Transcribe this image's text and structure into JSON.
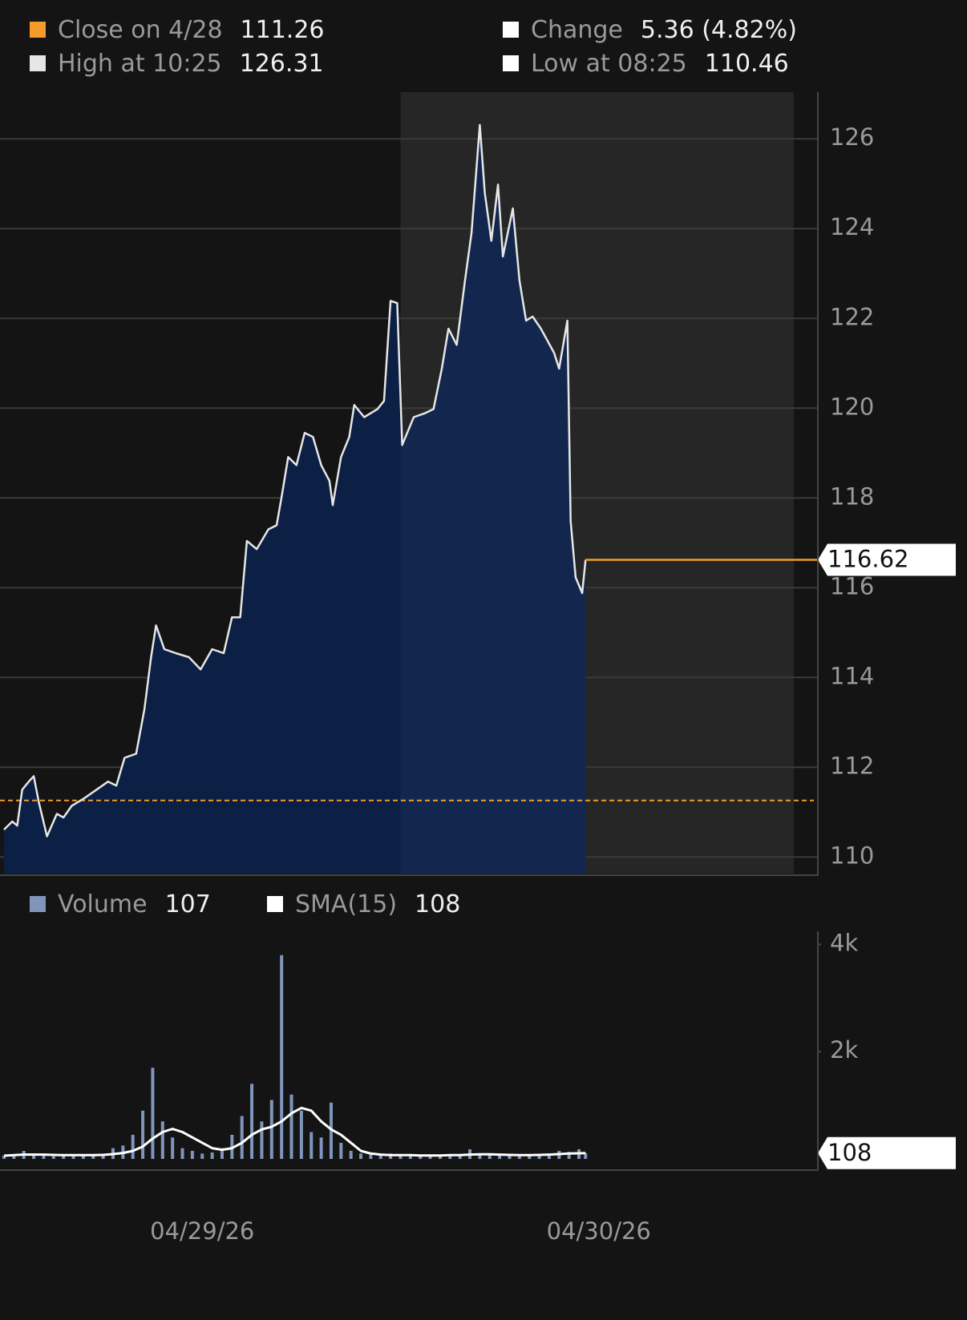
{
  "header": {
    "items": [
      {
        "label": "Close on 4/28",
        "value": 111.26,
        "color": "#f39c2b"
      },
      {
        "label": "Change",
        "value": "5.36 (4.82%)",
        "color": "#ffffff"
      },
      {
        "label": "High at 10:25",
        "value": 126.31,
        "color": "#e6e6e6"
      },
      {
        "label": "Low at 08:25",
        "value": 110.46,
        "color": "#ffffff"
      }
    ]
  },
  "chart_data": [
    {
      "type": "area",
      "color": "#e6e6e6",
      "fill_color": "#0c1f44",
      "reference_color": "#f39c2b",
      "x": [
        0,
        0.5,
        0.8,
        1.1,
        1.5,
        1.8,
        2.1,
        2.6,
        3.2,
        3.6,
        4.1,
        4.9,
        5.6,
        6.3,
        6.8,
        7.3,
        8.0,
        8.5,
        8.9,
        9.2,
        9.7,
        10.4,
        11.2,
        11.9,
        12.6,
        13.3,
        13.8,
        14.3,
        14.7,
        15.3,
        16.0,
        16.5,
        16.8,
        17.2,
        17.7,
        18.2,
        18.7,
        19.2,
        19.7,
        19.9,
        20.4,
        20.9,
        21.2,
        21.8,
        22.6,
        23.0,
        23.4,
        23.8,
        24.1,
        24.8,
        25.5,
        26.0,
        26.5,
        26.9,
        27.4,
        27.9,
        28.3,
        28.8,
        29.1,
        29.5,
        29.9,
        30.2,
        30.8,
        31.2,
        31.6,
        32.0,
        32.5,
        33.3,
        33.6,
        34.1,
        34.3,
        34.6,
        35.0,
        35.2
      ],
      "values": [
        110.61,
        110.79,
        110.7,
        111.5,
        111.68,
        111.8,
        111.23,
        110.46,
        110.96,
        110.88,
        111.14,
        111.32,
        111.5,
        111.68,
        111.59,
        112.21,
        112.3,
        113.29,
        114.45,
        115.16,
        114.63,
        114.54,
        114.45,
        114.18,
        114.63,
        114.54,
        115.34,
        115.34,
        117.04,
        116.86,
        117.3,
        117.39,
        118.02,
        118.91,
        118.73,
        119.45,
        119.36,
        118.73,
        118.38,
        117.84,
        118.91,
        119.36,
        120.07,
        119.8,
        119.98,
        120.16,
        122.39,
        122.34,
        119.18,
        119.8,
        119.89,
        119.98,
        120.88,
        121.77,
        121.41,
        122.84,
        123.91,
        126.31,
        124.8,
        123.73,
        124.98,
        123.38,
        124.45,
        122.84,
        121.95,
        122.04,
        121.77,
        121.23,
        120.88,
        121.95,
        117.48,
        116.23,
        115.88,
        116.62
      ],
      "xlim": [
        0,
        48
      ],
      "ylim": [
        109.63,
        127.04
      ],
      "yticks": [
        110,
        112,
        114,
        116,
        118,
        120,
        122,
        124,
        126
      ],
      "grid": true
    },
    {
      "type": "volume",
      "x": [
        0,
        0.6,
        1.2,
        1.8,
        2.4,
        3.0,
        3.6,
        4.2,
        4.8,
        5.4,
        6.0,
        6.6,
        7.2,
        7.8,
        8.4,
        9.0,
        9.6,
        10.2,
        10.8,
        11.4,
        12.0,
        12.6,
        13.2,
        13.8,
        14.4,
        15.0,
        15.6,
        16.2,
        16.8,
        17.4,
        18.0,
        18.6,
        19.2,
        19.8,
        20.4,
        21.0,
        21.6,
        22.2,
        22.8,
        23.4,
        24.0,
        24.6,
        25.2,
        25.8,
        26.4,
        27.0,
        27.6,
        28.2,
        28.8,
        29.4,
        30.0,
        30.6,
        31.2,
        31.8,
        32.4,
        33.0,
        33.6,
        34.2,
        34.8,
        35.2
      ],
      "series": [
        {
          "name": "Volume",
          "color": "#7f95bb",
          "values": [
            60,
            80,
            150,
            60,
            90,
            50,
            70,
            60,
            80,
            60,
            90,
            200,
            250,
            450,
            900,
            1700,
            700,
            400,
            200,
            150,
            100,
            120,
            200,
            450,
            800,
            1400,
            700,
            1100,
            3800,
            1200,
            900,
            500,
            400,
            1050,
            300,
            150,
            100,
            80,
            60,
            100,
            60,
            80,
            50,
            70,
            60,
            90,
            60,
            180,
            80,
            100,
            60,
            80,
            50,
            90,
            60,
            80,
            150,
            130,
            180,
            107
          ]
        },
        {
          "name": "SMA(15)",
          "color": "#ffffff",
          "values": [
            60,
            70,
            80,
            80,
            80,
            75,
            70,
            70,
            70,
            70,
            75,
            90,
            110,
            150,
            230,
            380,
            500,
            560,
            500,
            400,
            300,
            200,
            170,
            200,
            300,
            450,
            550,
            600,
            700,
            850,
            950,
            900,
            700,
            550,
            450,
            300,
            150,
            100,
            80,
            70,
            70,
            70,
            65,
            65,
            65,
            70,
            70,
            80,
            85,
            85,
            80,
            75,
            70,
            70,
            75,
            80,
            90,
            100,
            105,
            108
          ]
        }
      ],
      "xlim": [
        0,
        48
      ],
      "ylim": [
        0,
        4200
      ],
      "yticks": [
        {
          "value": 2000,
          "label": "2k"
        },
        {
          "value": 4000,
          "label": "4k"
        }
      ],
      "xticks": [
        {
          "value": 12,
          "label": "04/29/26"
        },
        {
          "value": 36,
          "label": "04/30/26"
        }
      ]
    }
  ]
}
